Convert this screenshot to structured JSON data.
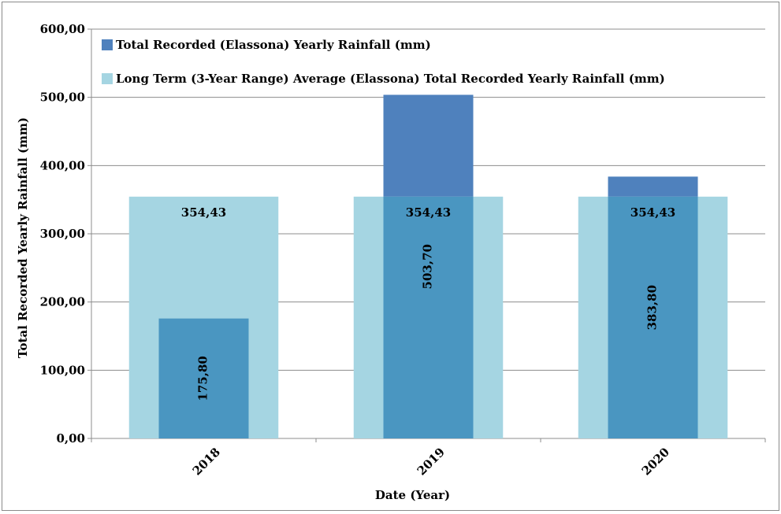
{
  "chart_data": {
    "type": "bar",
    "title": "",
    "xlabel": "Date (Year)",
    "ylabel": "Total Recorded Yearly Rainfall (mm)",
    "categories": [
      "2018",
      "2019",
      "2020"
    ],
    "ylim": [
      0,
      600
    ],
    "yticks": [
      0,
      100,
      200,
      300,
      400,
      500,
      600
    ],
    "ytick_labels": [
      "0,00",
      "100,00",
      "200,00",
      "300,00",
      "400,00",
      "500,00",
      "600,00"
    ],
    "grid": true,
    "legend_position": "top-left",
    "series": [
      {
        "name": "Long Term (3-Year Range) Average (Elassona) Total Recorded Yearly Rainfall (mm)",
        "values": [
          354.43,
          354.43,
          354.43
        ],
        "value_labels": [
          "354,43",
          "354,43",
          "354,43"
        ],
        "color": "#A5D5E2"
      },
      {
        "name": "Total Recorded (Elassona) Yearly Rainfall (mm)",
        "values": [
          175.8,
          503.7,
          383.8
        ],
        "value_labels": [
          "175,80",
          "503,70",
          "383,80"
        ],
        "color": "#4F81BD",
        "overlap_color": "#4A96C1"
      }
    ],
    "legend": [
      {
        "label": "Total Recorded (Elassona) Yearly Rainfall (mm)",
        "color": "#4F81BD"
      },
      {
        "label": "Long Term (3-Year Range) Average (Elassona) Total Recorded Yearly Rainfall (mm)",
        "color": "#A5D5E2"
      }
    ]
  }
}
